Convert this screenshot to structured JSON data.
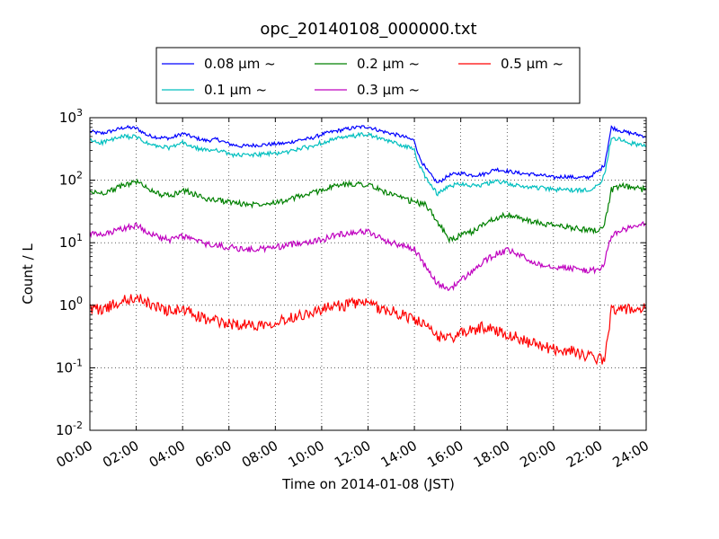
{
  "chart_data": {
    "type": "line",
    "title": "opc_20140108_000000.txt",
    "xlabel": "Time on 2014-01-08 (JST)",
    "ylabel": "Count / L",
    "x_ticks": [
      "00:00",
      "02:00",
      "04:00",
      "06:00",
      "08:00",
      "10:00",
      "12:00",
      "14:00",
      "16:00",
      "18:00",
      "20:00",
      "22:00",
      "24:00"
    ],
    "y_scale": "log",
    "ylim": [
      0.01,
      1000
    ],
    "y_ticks": [
      {
        "value": 0.01,
        "base": "10",
        "exp": "-2"
      },
      {
        "value": 0.1,
        "base": "10",
        "exp": "-1"
      },
      {
        "value": 1,
        "base": "10",
        "exp": "0"
      },
      {
        "value": 10,
        "base": "10",
        "exp": "1"
      },
      {
        "value": 100,
        "base": "10",
        "exp": "2"
      },
      {
        "value": 1000,
        "base": "10",
        "exp": "3"
      }
    ],
    "x_range_hours": [
      0,
      24
    ],
    "grid": true,
    "legend_position": "top",
    "legend_columns": 3,
    "series": [
      {
        "name": "0.08 μm ~",
        "color": "#0000ff",
        "x": [
          0,
          0.5,
          1,
          1.5,
          2,
          2.5,
          3,
          3.5,
          4,
          4.5,
          5,
          5.5,
          6,
          6.5,
          7,
          7.5,
          8,
          8.5,
          9,
          9.5,
          10,
          10.5,
          11,
          11.5,
          12,
          12.5,
          13,
          13.5,
          14,
          14.2,
          14.5,
          15,
          15.5,
          16,
          16.5,
          17,
          17.5,
          18,
          18.5,
          19,
          19.5,
          20,
          20.5,
          21,
          21.5,
          22,
          22.2,
          22.5,
          23,
          23.5,
          24
        ],
        "y": [
          600,
          560,
          620,
          700,
          680,
          520,
          480,
          470,
          560,
          480,
          430,
          450,
          380,
          350,
          360,
          370,
          380,
          390,
          440,
          460,
          540,
          600,
          650,
          700,
          720,
          620,
          560,
          500,
          430,
          240,
          150,
          90,
          120,
          130,
          120,
          125,
          150,
          140,
          130,
          125,
          120,
          110,
          115,
          110,
          110,
          145,
          180,
          700,
          600,
          550,
          500
        ]
      },
      {
        "name": "0.1 μm ~",
        "color": "#00bfbf",
        "x": [
          0,
          0.5,
          1,
          1.5,
          2,
          2.5,
          3,
          3.5,
          4,
          4.5,
          5,
          5.5,
          6,
          6.5,
          7,
          7.5,
          8,
          8.5,
          9,
          9.5,
          10,
          10.5,
          11,
          11.5,
          12,
          12.5,
          13,
          13.5,
          14,
          14.2,
          14.5,
          15,
          15.5,
          16,
          16.5,
          17,
          17.5,
          18,
          18.5,
          19,
          19.5,
          20,
          20.5,
          21,
          21.5,
          22,
          22.2,
          22.5,
          23,
          23.5,
          24
        ],
        "y": [
          430,
          400,
          450,
          500,
          490,
          380,
          340,
          330,
          400,
          330,
          300,
          310,
          260,
          250,
          255,
          260,
          270,
          280,
          320,
          340,
          400,
          450,
          480,
          520,
          540,
          460,
          410,
          360,
          310,
          170,
          110,
          60,
          80,
          90,
          82,
          85,
          95,
          90,
          80,
          78,
          75,
          70,
          72,
          68,
          70,
          90,
          120,
          500,
          420,
          380,
          350
        ]
      },
      {
        "name": "0.2 μm ~",
        "color": "#008000",
        "x": [
          0,
          0.5,
          1,
          1.5,
          2,
          2.5,
          3,
          3.5,
          4,
          4.5,
          5,
          5.5,
          6,
          6.5,
          7,
          7.5,
          8,
          8.5,
          9,
          9.5,
          10,
          10.5,
          11,
          11.5,
          12,
          12.5,
          13,
          13.5,
          14,
          14.5,
          15,
          15.5,
          16,
          16.5,
          17,
          17.5,
          18,
          18.5,
          19,
          19.5,
          20,
          20.5,
          21,
          21.5,
          22,
          22.2,
          22.5,
          23,
          23.5,
          24
        ],
        "y": [
          65,
          62,
          70,
          85,
          95,
          75,
          60,
          55,
          70,
          60,
          50,
          48,
          45,
          42,
          41,
          43,
          45,
          47,
          55,
          60,
          70,
          80,
          85,
          88,
          85,
          70,
          60,
          50,
          45,
          40,
          22,
          11,
          13,
          15,
          20,
          25,
          28,
          25,
          22,
          20,
          19,
          18,
          17,
          16,
          16,
          20,
          70,
          80,
          75,
          70
        ]
      },
      {
        "name": "0.3 μm ~",
        "color": "#bf00bf",
        "x": [
          0,
          0.5,
          1,
          1.5,
          2,
          2.5,
          3,
          3.5,
          4,
          4.5,
          5,
          5.5,
          6,
          6.5,
          7,
          7.5,
          8,
          8.5,
          9,
          9.5,
          10,
          10.5,
          11,
          11.5,
          12,
          12.5,
          13,
          13.5,
          14,
          14.5,
          15,
          15.5,
          16,
          16.5,
          17,
          17.5,
          18,
          18.5,
          19,
          19.5,
          20,
          20.5,
          21,
          21.5,
          22,
          22.2,
          22.5,
          23,
          23.5,
          24
        ],
        "y": [
          14,
          13,
          15,
          17,
          19,
          15,
          12,
          11,
          13,
          11,
          9.5,
          9,
          8.5,
          8,
          7.8,
          8,
          8.5,
          9,
          10,
          10.5,
          11,
          13,
          14,
          15,
          15,
          12,
          10,
          9,
          8,
          4,
          2.2,
          1.8,
          2.5,
          3.5,
          5,
          6.5,
          7.5,
          6.5,
          5,
          4.5,
          4.2,
          4,
          3.8,
          3.6,
          3.6,
          5,
          13,
          16,
          18,
          20
        ]
      },
      {
        "name": "0.5 μm ~",
        "color": "#ff0000",
        "x": [
          0,
          0.5,
          1,
          1.5,
          2,
          2.5,
          3,
          3.5,
          4,
          4.5,
          5,
          5.5,
          6,
          6.5,
          7,
          7.5,
          8,
          8.5,
          9,
          9.5,
          10,
          10.5,
          11,
          11.5,
          12,
          12.5,
          13,
          13.5,
          14,
          14.5,
          15,
          15.5,
          16,
          16.5,
          17,
          17.5,
          18,
          18.5,
          19,
          19.5,
          20,
          20.5,
          21,
          21.5,
          22,
          22.2,
          22.5,
          23,
          23.5,
          24
        ],
        "y": [
          0.9,
          0.85,
          1.0,
          1.2,
          1.3,
          1.1,
          0.9,
          0.8,
          0.85,
          0.7,
          0.6,
          0.55,
          0.5,
          0.5,
          0.48,
          0.5,
          0.55,
          0.6,
          0.7,
          0.75,
          0.85,
          0.95,
          1.0,
          1.1,
          1.05,
          0.9,
          0.8,
          0.7,
          0.6,
          0.45,
          0.32,
          0.3,
          0.35,
          0.4,
          0.45,
          0.4,
          0.35,
          0.3,
          0.25,
          0.22,
          0.2,
          0.19,
          0.18,
          0.15,
          0.14,
          0.12,
          0.9,
          0.85,
          0.85,
          0.9
        ]
      }
    ]
  }
}
